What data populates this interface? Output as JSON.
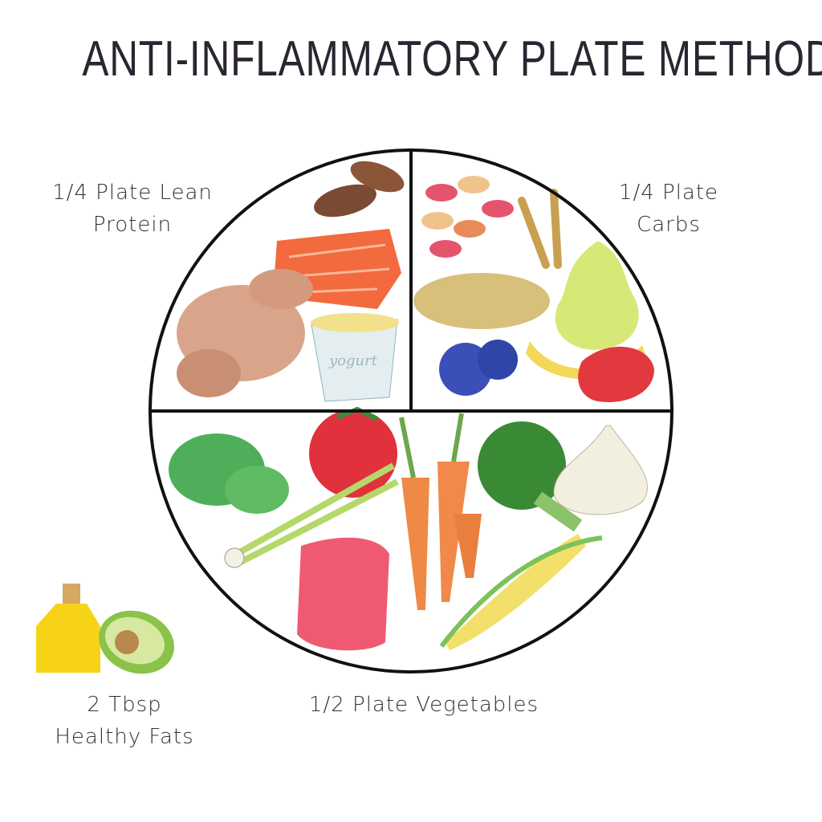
{
  "title": "ANTI-INFLAMMATORY PLATE METHOD",
  "sections": {
    "protein": {
      "line1": "1/4 Plate Lean",
      "line2": "Protein",
      "fraction": 0.25
    },
    "carbs": {
      "line1": "1/4 Plate",
      "line2": "Carbs",
      "fraction": 0.25
    },
    "vegetables": {
      "line1": "1/2 Plate Vegetables",
      "fraction": 0.5
    },
    "fats": {
      "line1": "2 Tbsp",
      "line2": "Healthy Fats"
    }
  },
  "illustrations": {
    "protein": [
      "almonds-icon",
      "salmon-icon",
      "chicken-icon",
      "yogurt-icon"
    ],
    "carbs": [
      "beans-icon",
      "wheat-icon",
      "pear-icon",
      "oats-icon",
      "blueberries-icon",
      "banana-icon",
      "strawberry-icon"
    ],
    "vegetables": [
      "spinach-icon",
      "tomato-icon",
      "carrot-icon",
      "broccoli-icon",
      "garlic-icon",
      "scallion-icon",
      "bell-pepper-icon",
      "corn-icon"
    ],
    "fats": [
      "olive-oil-icon",
      "avocado-icon"
    ],
    "yogurt_lettering": "yogurt"
  },
  "colors": {
    "title": "#2a2530",
    "plate_line": "#111111"
  }
}
